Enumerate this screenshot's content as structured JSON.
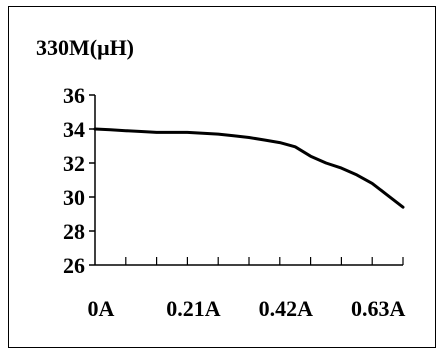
{
  "chart_data": {
    "type": "line",
    "title": "330M(μH)",
    "xlabel": "",
    "ylabel": "",
    "x_tick_labels": [
      "0A",
      "0.21A",
      "0.42A",
      "0.63A"
    ],
    "x_tick_values": [
      0,
      0.21,
      0.42,
      0.63
    ],
    "xlim": [
      0,
      0.7
    ],
    "y_ticks": [
      26,
      28,
      30,
      32,
      34,
      36
    ],
    "ylim": [
      26,
      36
    ],
    "grid": false,
    "legend": "none",
    "line_color": "#000000",
    "series": [
      {
        "x": [
          0,
          0.035,
          0.07,
          0.105,
          0.14,
          0.175,
          0.21,
          0.245,
          0.28,
          0.315,
          0.35,
          0.385,
          0.42,
          0.455,
          0.49,
          0.525,
          0.56,
          0.595,
          0.63,
          0.665,
          0.7
        ],
        "values": [
          34.0,
          33.95,
          33.9,
          33.85,
          33.8,
          33.8,
          33.8,
          33.75,
          33.7,
          33.6,
          33.5,
          33.35,
          33.2,
          32.95,
          32.4,
          32.0,
          31.7,
          31.3,
          30.8,
          30.1,
          29.4
        ]
      }
    ]
  }
}
